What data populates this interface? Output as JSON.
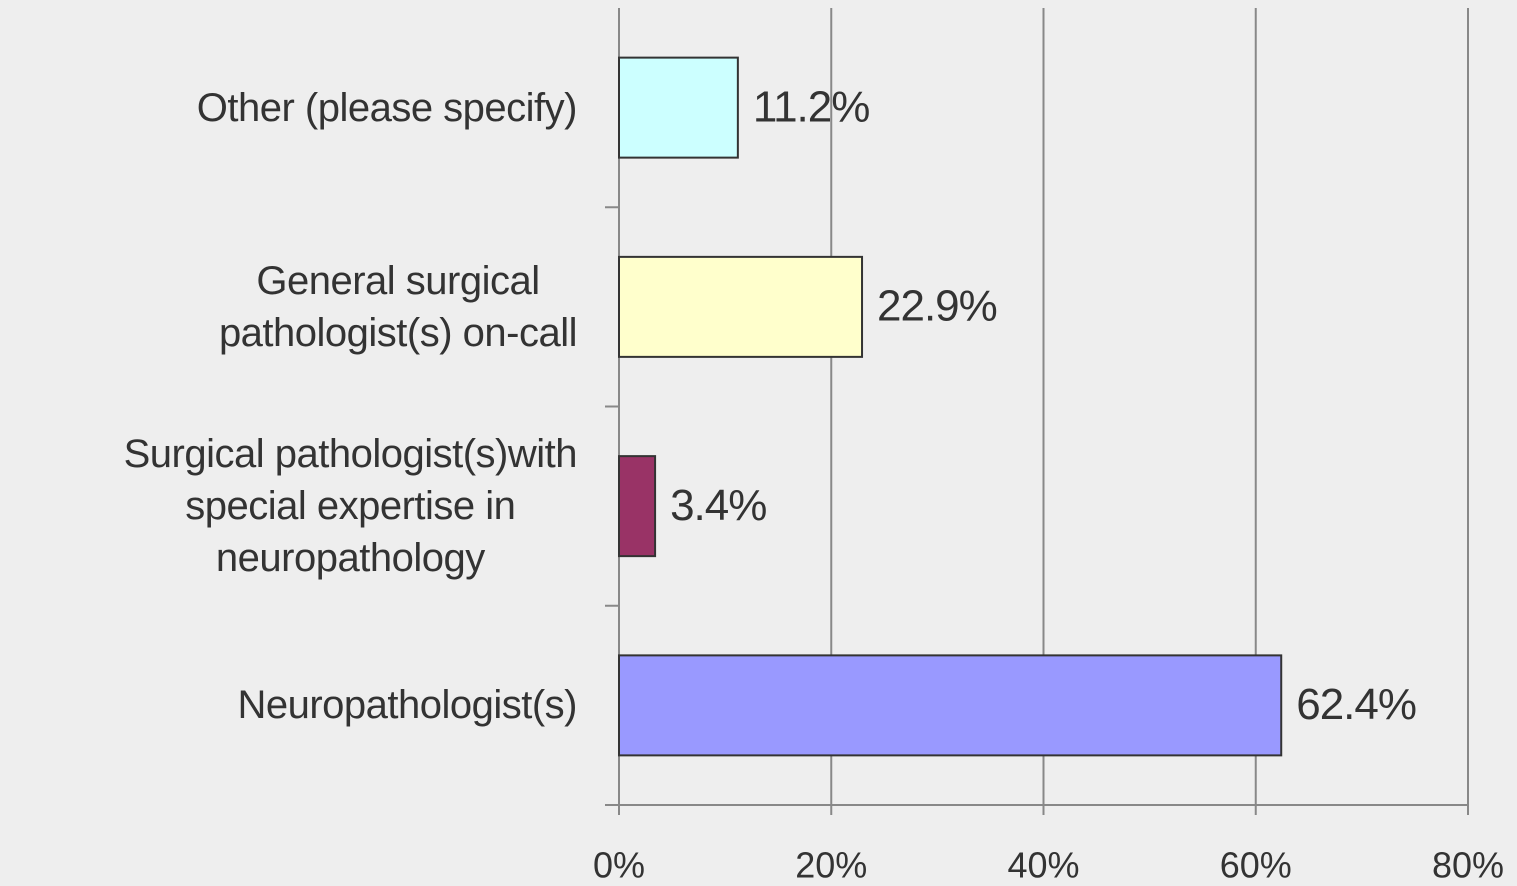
{
  "chart_data": {
    "type": "bar",
    "orientation": "horizontal",
    "categories": [
      "Other (please specify)",
      "General surgical\npathologist(s) on-call",
      "Surgical pathologist(s)with\nspecial expertise in\nneuropathology",
      "Neuropathologist(s)"
    ],
    "values": [
      11.2,
      22.9,
      3.4,
      62.4
    ],
    "value_labels": [
      "11.2%",
      "22.9%",
      "3.4%",
      "62.4%"
    ],
    "colors": [
      "#ccffff",
      "#ffffcc",
      "#993366",
      "#9999ff"
    ],
    "xlim": [
      0,
      80
    ],
    "xticks": [
      {
        "value": 0,
        "label": "0%"
      },
      {
        "value": 20,
        "label": "20%"
      },
      {
        "value": 40,
        "label": "40%"
      },
      {
        "value": 60,
        "label": "60%"
      },
      {
        "value": 80,
        "label": "80%"
      }
    ],
    "grid": true
  }
}
